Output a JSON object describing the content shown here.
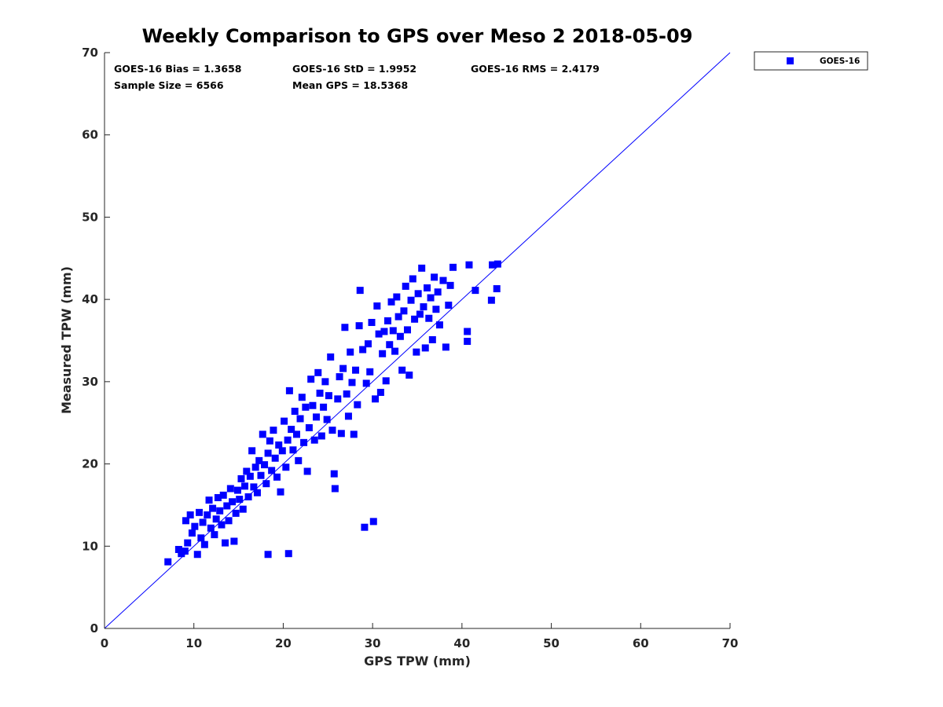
{
  "chart_data": {
    "type": "scatter",
    "title": "Weekly Comparison to GPS over Meso 2 2018-05-09",
    "xlabel": "GPS TPW (mm)",
    "ylabel": "Measured TPW (mm)",
    "xlim": [
      0,
      70
    ],
    "ylim": [
      0,
      70
    ],
    "xticks": [
      "0",
      "10",
      "20",
      "30",
      "40",
      "50",
      "60",
      "70"
    ],
    "yticks": [
      "0",
      "10",
      "20",
      "30",
      "40",
      "50",
      "60",
      "70"
    ],
    "grid": false,
    "legend_position": "outside-top-right",
    "reference_line": {
      "from": [
        0,
        0
      ],
      "to": [
        70,
        70
      ],
      "color": "#0000ff"
    },
    "marker_color": "#0000ff",
    "stats": [
      "GOES-16 Bias = 1.3658",
      "GOES-16 StD = 1.9952",
      "GOES-16 RMS = 2.4179",
      "Sample Size = 6566",
      "Mean GPS = 18.5368"
    ],
    "series": [
      {
        "name": "GOES-16",
        "points": [
          [
            7.1,
            8.1
          ],
          [
            8.3,
            9.6
          ],
          [
            8.6,
            9.1
          ],
          [
            9.0,
            9.4
          ],
          [
            9.3,
            10.4
          ],
          [
            9.1,
            13.1
          ],
          [
            9.6,
            13.8
          ],
          [
            9.8,
            11.6
          ],
          [
            10.1,
            12.4
          ],
          [
            10.4,
            9.0
          ],
          [
            10.6,
            14.1
          ],
          [
            10.8,
            11.0
          ],
          [
            11.0,
            12.9
          ],
          [
            11.2,
            10.2
          ],
          [
            11.5,
            13.8
          ],
          [
            11.7,
            15.6
          ],
          [
            11.9,
            12.2
          ],
          [
            12.1,
            14.6
          ],
          [
            12.3,
            11.4
          ],
          [
            12.5,
            13.3
          ],
          [
            12.7,
            15.9
          ],
          [
            12.9,
            14.3
          ],
          [
            13.1,
            12.6
          ],
          [
            13.3,
            16.2
          ],
          [
            13.5,
            10.4
          ],
          [
            13.7,
            14.9
          ],
          [
            13.9,
            13.1
          ],
          [
            14.1,
            17.0
          ],
          [
            14.3,
            15.4
          ],
          [
            14.5,
            10.6
          ],
          [
            14.7,
            14.0
          ],
          [
            14.9,
            16.8
          ],
          [
            15.1,
            15.7
          ],
          [
            15.3,
            18.2
          ],
          [
            15.5,
            14.5
          ],
          [
            15.7,
            17.3
          ],
          [
            15.9,
            19.1
          ],
          [
            16.1,
            16.0
          ],
          [
            16.3,
            18.5
          ],
          [
            16.5,
            21.6
          ],
          [
            16.7,
            17.2
          ],
          [
            16.9,
            19.6
          ],
          [
            17.1,
            16.5
          ],
          [
            17.3,
            20.4
          ],
          [
            17.5,
            18.6
          ],
          [
            17.7,
            23.6
          ],
          [
            17.9,
            19.9
          ],
          [
            18.1,
            17.6
          ],
          [
            18.3,
            21.3
          ],
          [
            18.3,
            9.0
          ],
          [
            18.5,
            22.8
          ],
          [
            18.7,
            19.2
          ],
          [
            18.9,
            24.1
          ],
          [
            19.1,
            20.7
          ],
          [
            19.3,
            18.4
          ],
          [
            19.5,
            22.3
          ],
          [
            19.7,
            16.6
          ],
          [
            19.9,
            21.6
          ],
          [
            20.1,
            25.2
          ],
          [
            20.3,
            19.6
          ],
          [
            20.5,
            22.9
          ],
          [
            20.6,
            9.1
          ],
          [
            20.7,
            28.9
          ],
          [
            20.9,
            24.2
          ],
          [
            21.1,
            21.7
          ],
          [
            21.3,
            26.4
          ],
          [
            21.5,
            23.6
          ],
          [
            21.7,
            20.4
          ],
          [
            21.9,
            25.5
          ],
          [
            22.1,
            28.1
          ],
          [
            22.3,
            22.6
          ],
          [
            22.5,
            26.9
          ],
          [
            22.7,
            19.1
          ],
          [
            22.9,
            24.4
          ],
          [
            23.1,
            30.3
          ],
          [
            23.3,
            27.1
          ],
          [
            23.5,
            22.9
          ],
          [
            23.7,
            25.7
          ],
          [
            23.9,
            31.1
          ],
          [
            24.1,
            28.6
          ],
          [
            24.3,
            23.4
          ],
          [
            24.5,
            26.9
          ],
          [
            24.7,
            30.0
          ],
          [
            24.9,
            25.4
          ],
          [
            25.1,
            28.3
          ],
          [
            25.3,
            33.0
          ],
          [
            25.5,
            24.1
          ],
          [
            25.7,
            18.8
          ],
          [
            25.8,
            17.0
          ],
          [
            26.1,
            27.9
          ],
          [
            26.3,
            30.6
          ],
          [
            26.5,
            23.7
          ],
          [
            26.7,
            31.6
          ],
          [
            26.9,
            36.6
          ],
          [
            27.1,
            28.5
          ],
          [
            27.3,
            25.8
          ],
          [
            27.5,
            33.6
          ],
          [
            27.7,
            29.9
          ],
          [
            27.9,
            23.6
          ],
          [
            28.1,
            31.4
          ],
          [
            28.3,
            27.2
          ],
          [
            28.5,
            36.8
          ],
          [
            28.6,
            41.1
          ],
          [
            28.9,
            33.9
          ],
          [
            29.1,
            12.3
          ],
          [
            29.3,
            29.8
          ],
          [
            29.5,
            34.6
          ],
          [
            29.7,
            31.2
          ],
          [
            29.9,
            37.2
          ],
          [
            30.1,
            13.0
          ],
          [
            30.3,
            27.9
          ],
          [
            30.5,
            39.2
          ],
          [
            30.7,
            35.8
          ],
          [
            30.9,
            28.7
          ],
          [
            31.1,
            33.4
          ],
          [
            31.3,
            36.1
          ],
          [
            31.5,
            30.1
          ],
          [
            31.7,
            37.4
          ],
          [
            31.9,
            34.5
          ],
          [
            32.1,
            39.7
          ],
          [
            32.3,
            36.2
          ],
          [
            32.5,
            33.7
          ],
          [
            32.7,
            40.3
          ],
          [
            32.9,
            37.9
          ],
          [
            33.1,
            35.5
          ],
          [
            33.3,
            31.4
          ],
          [
            33.5,
            38.6
          ],
          [
            33.7,
            41.6
          ],
          [
            33.9,
            36.3
          ],
          [
            34.1,
            30.8
          ],
          [
            34.3,
            39.9
          ],
          [
            34.5,
            42.5
          ],
          [
            34.7,
            37.6
          ],
          [
            34.9,
            33.6
          ],
          [
            35.1,
            40.7
          ],
          [
            35.3,
            38.2
          ],
          [
            35.5,
            43.8
          ],
          [
            35.7,
            39.1
          ],
          [
            35.9,
            34.1
          ],
          [
            36.1,
            41.4
          ],
          [
            36.3,
            37.7
          ],
          [
            36.5,
            40.2
          ],
          [
            36.7,
            35.1
          ],
          [
            36.9,
            42.7
          ],
          [
            37.1,
            38.8
          ],
          [
            37.3,
            40.9
          ],
          [
            37.5,
            36.9
          ],
          [
            37.9,
            42.3
          ],
          [
            38.2,
            34.2
          ],
          [
            38.5,
            39.3
          ],
          [
            38.7,
            41.7
          ],
          [
            39.0,
            43.9
          ],
          [
            40.6,
            36.1
          ],
          [
            40.6,
            34.9
          ],
          [
            40.8,
            44.2
          ],
          [
            41.5,
            41.1
          ],
          [
            43.3,
            39.9
          ],
          [
            43.4,
            44.2
          ],
          [
            43.9,
            41.3
          ],
          [
            44.0,
            44.3
          ]
        ]
      }
    ]
  }
}
